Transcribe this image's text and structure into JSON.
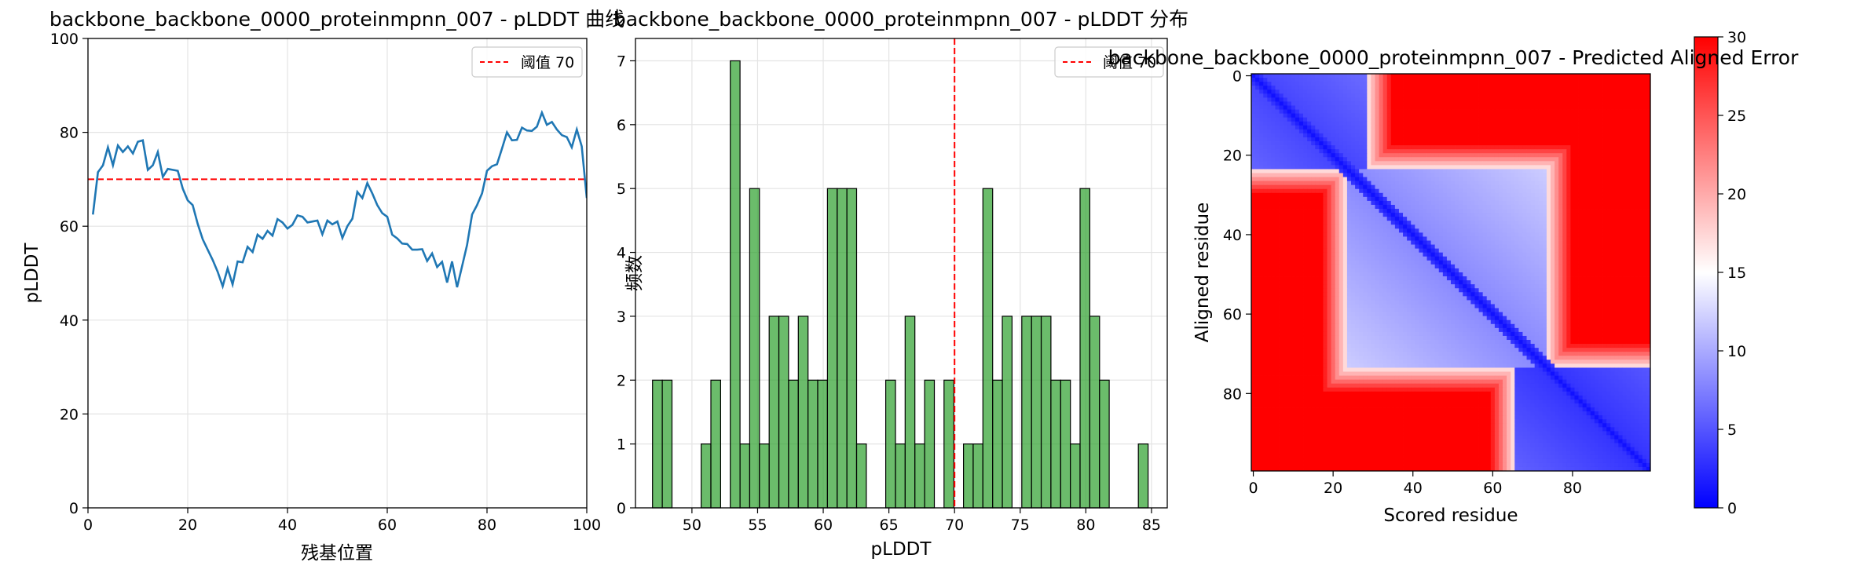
{
  "chart_data": [
    {
      "type": "line",
      "title": "backbone_backbone_0000_proteinmpnn_007 - pLDDT 曲线",
      "xlabel": "残基位置",
      "ylabel": "pLDDT",
      "xlim": [
        0,
        100
      ],
      "ylim": [
        0,
        100
      ],
      "xticks": [
        0,
        20,
        40,
        60,
        80,
        100
      ],
      "yticks": [
        0,
        20,
        40,
        60,
        80,
        100
      ],
      "grid": true,
      "legend_position": "top-right",
      "color": "#1f77b4",
      "threshold": {
        "value": 70,
        "label": "阈值 70",
        "color": "#ff0000",
        "style": "dashed"
      },
      "x": [
        1,
        2,
        3,
        4,
        5,
        6,
        7,
        8,
        9,
        10,
        11,
        12,
        13,
        14,
        15,
        16,
        17,
        18,
        19,
        20,
        21,
        22,
        23,
        24,
        25,
        26,
        27,
        28,
        29,
        30,
        31,
        32,
        33,
        34,
        35,
        36,
        37,
        38,
        39,
        40,
        41,
        42,
        43,
        44,
        45,
        46,
        47,
        48,
        49,
        50,
        51,
        52,
        53,
        54,
        55,
        56,
        57,
        58,
        59,
        60,
        61,
        62,
        63,
        64,
        65,
        66,
        67,
        68,
        69,
        70,
        71,
        72,
        73,
        74,
        75,
        76,
        77,
        78,
        79,
        80,
        81,
        82,
        83,
        84,
        85,
        86,
        87,
        88,
        89,
        90,
        91,
        92,
        93,
        94,
        95,
        96,
        97,
        98,
        99,
        100
      ],
      "values": [
        62.5,
        71.5,
        73,
        76.8,
        73,
        77.2,
        75.8,
        77,
        75.5,
        78,
        78.3,
        72,
        73,
        75.8,
        70.5,
        72.2,
        72,
        71.8,
        68,
        65.5,
        64.5,
        60.5,
        57.2,
        55,
        52.8,
        50.3,
        47.2,
        51,
        47.6,
        52.5,
        52.3,
        55.6,
        54.5,
        58.2,
        57.3,
        59,
        58,
        61.5,
        60.8,
        59.5,
        60.3,
        62.3,
        62,
        60.8,
        61,
        61.2,
        58.3,
        61.2,
        60.4,
        61,
        57.5,
        60,
        61.6,
        67.3,
        66,
        69.2,
        67,
        64.5,
        62.8,
        62,
        58.2,
        57.4,
        56.3,
        56.2,
        55,
        55,
        55.1,
        52.6,
        54.2,
        51.3,
        52.4,
        48,
        52.5,
        47,
        51.5,
        56,
        62.5,
        64.5,
        67,
        71.8,
        72.8,
        73.2,
        76.5,
        80,
        78.3,
        78.4,
        81,
        80.4,
        80.3,
        81.2,
        84.2,
        81.6,
        82.2,
        80.6,
        79.4,
        79,
        76.8,
        80.6,
        77,
        66
      ]
    },
    {
      "type": "bar",
      "title": "backbone_backbone_0000_proteinmpnn_007 - pLDDT 分布",
      "xlabel": "pLDDT",
      "ylabel": "频数",
      "xlim": [
        45.7,
        86.2
      ],
      "ylim": [
        0,
        7.35
      ],
      "xticks": [
        50,
        55,
        60,
        65,
        70,
        75,
        80,
        85
      ],
      "yticks": [
        0,
        1,
        2,
        3,
        4,
        5,
        6,
        7
      ],
      "grid": true,
      "legend_position": "top-right",
      "color": "#2ca02c",
      "bin_start": 47.0,
      "bin_width": 0.74,
      "values": [
        2,
        2,
        0,
        0,
        0,
        1,
        2,
        0,
        7,
        1,
        5,
        1,
        3,
        3,
        2,
        3,
        2,
        2,
        5,
        5,
        5,
        1,
        0,
        0,
        2,
        1,
        3,
        1,
        2,
        0,
        2,
        0,
        1,
        1,
        5,
        2,
        3,
        0,
        3,
        3,
        3,
        2,
        2,
        1,
        5,
        3,
        2,
        0,
        0,
        0,
        1
      ],
      "threshold": {
        "value": 70,
        "label": "阈值 70",
        "color": "#ff0000",
        "style": "dashed"
      }
    },
    {
      "type": "heatmap",
      "title": "backbone_backbone_0000_proteinmpnn_007 - Predicted Aligned Error",
      "xlabel": "Scored residue",
      "ylabel": "Aligned residue",
      "size": 100,
      "xticks": [
        0,
        20,
        40,
        60,
        80
      ],
      "yticks": [
        0,
        20,
        40,
        60,
        80
      ],
      "colormap": "bwr",
      "vmin": 0,
      "vmax": 30,
      "colorbar_ticks": [
        0,
        5,
        10,
        15,
        20,
        25,
        30
      ],
      "domains": [
        {
          "rows": [
            0,
            23
          ],
          "cols": [
            0,
            28
          ],
          "error": 4
        },
        {
          "rows": [
            24,
            73
          ],
          "cols": [
            24,
            73
          ],
          "error": 8
        },
        {
          "rows": [
            74,
            99
          ],
          "cols": [
            66,
            99
          ],
          "error": 3
        }
      ]
    }
  ]
}
